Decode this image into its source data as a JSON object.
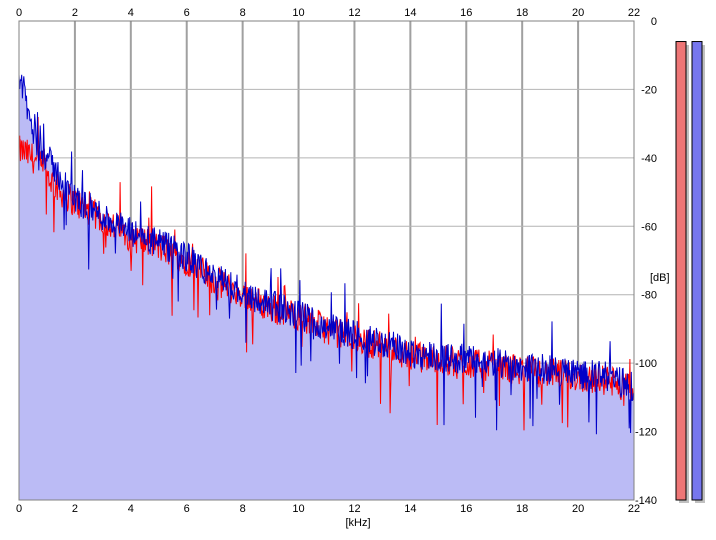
{
  "chart_data": {
    "type": "line",
    "title": "",
    "xlabel": "[kHz]",
    "ylabel": "[dB]",
    "xlim": [
      0,
      22
    ],
    "ylim": [
      -140,
      0
    ],
    "x_ticks": [
      "0",
      "2",
      "4",
      "6",
      "8",
      "10",
      "12",
      "14",
      "16",
      "18",
      "20",
      "22"
    ],
    "y_ticks": [
      "0",
      "-20",
      "-40",
      "-60",
      "-80",
      "-100",
      "-120",
      "-140"
    ],
    "grid": true,
    "x_scale": "linear",
    "x_points_khz": [
      0.1,
      0.5,
      1,
      1.5,
      2,
      3,
      4,
      5,
      6,
      7,
      8,
      9,
      10,
      11,
      12,
      13,
      14,
      15,
      16,
      17,
      18,
      19,
      20,
      21,
      22
    ],
    "series": [
      {
        "color": "#ff0000",
        "values": [
          -38,
          -40,
          -45,
          -50,
          -53,
          -58,
          -63,
          -66,
          -70,
          -76,
          -80,
          -84,
          -86,
          -90,
          -93,
          -95,
          -98,
          -99,
          -100,
          -101,
          -102,
          -103,
          -104,
          -105,
          -108
        ]
      },
      {
        "color": "#0000c8",
        "values": [
          -18,
          -33,
          -40,
          -46,
          -52,
          -57,
          -62,
          -65,
          -69,
          -75,
          -79,
          -83,
          -86,
          -89,
          -92,
          -94,
          -97,
          -98,
          -99,
          -100,
          -101,
          -102,
          -103,
          -104,
          -107
        ]
      }
    ],
    "fill_color": "#bbbbf5",
    "level_meters": [
      {
        "channel": "left",
        "color": "#ee7676",
        "level_db": -6
      },
      {
        "channel": "right",
        "color": "#7676ee",
        "level_db": -6
      }
    ]
  }
}
